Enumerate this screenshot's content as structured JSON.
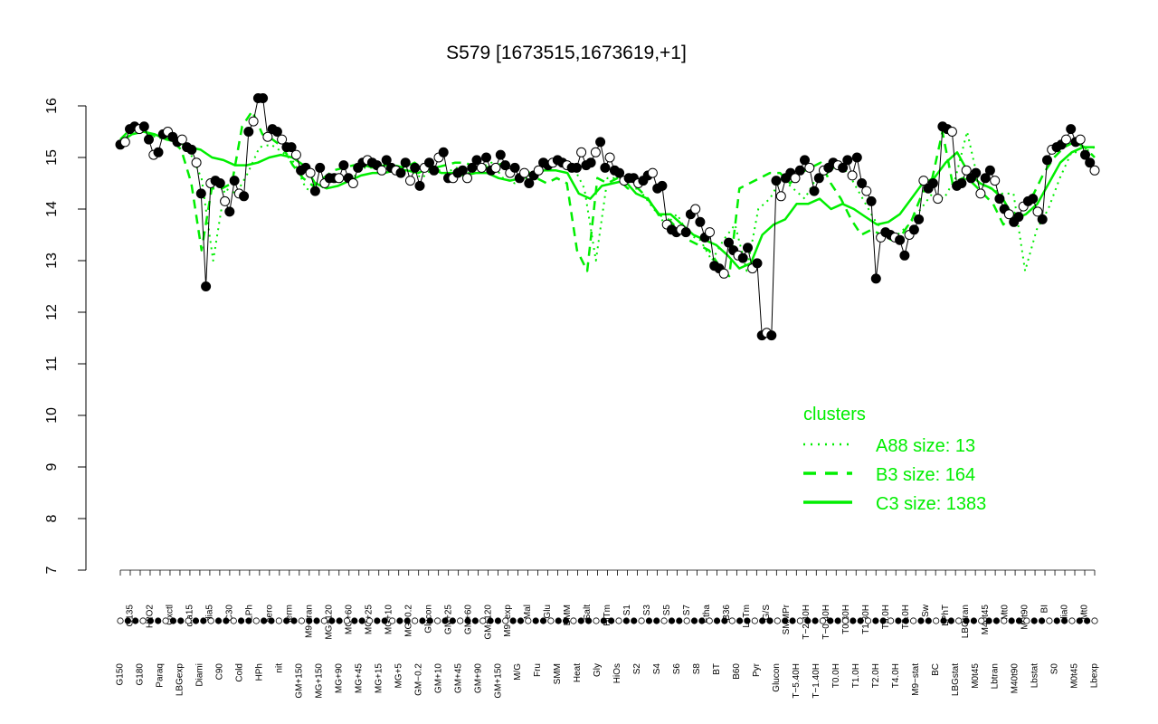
{
  "chart_data": {
    "type": "line",
    "title": "S579 [1673515,1673619,+1]",
    "xlabel": "",
    "ylabel": "",
    "ylim": [
      7,
      16
    ],
    "yticks": [
      7,
      8,
      9,
      10,
      11,
      12,
      13,
      14,
      15,
      16
    ],
    "grid": false,
    "x_tick_labels_top": [
      "G150",
      "G135",
      "G180",
      "H2O2",
      "Paraq",
      "Oxctl",
      "LBGexp",
      "dia15",
      "Diami",
      "dia5",
      "C90",
      "C30",
      "Cold",
      "LPh",
      "HPh",
      "aero",
      "nit",
      "ferm",
      "GM+150",
      "M9−tran",
      "MG+150",
      "MG+120",
      "MG+90",
      "MG+60",
      "MG+45",
      "MG+25",
      "MG+15",
      "MG+10",
      "MG+5",
      "MG−0.2",
      "GM−0.2",
      "Glucon",
      "GM+10",
      "GM+25",
      "GM+45",
      "GM+60",
      "GM+90",
      "GM+120",
      "GM+150",
      "M9−exp",
      "M/G",
      "Mal",
      "Fru",
      "Glu",
      "SMM",
      "BMM",
      "Heat",
      "Salt",
      "Gly",
      "HiTm",
      "HiOs",
      "S1",
      "S2",
      "S3",
      "S4",
      "S5",
      "S6",
      "S7",
      "S8",
      "Etha",
      "BT",
      "B36",
      "B60",
      "LoTm",
      "Pyr",
      "G/S",
      "Glucon",
      "SMMPr",
      "T−5.40H",
      "T−2.40H",
      "T−1.40H",
      "T−0.40H",
      "T0.0H",
      "T0.30H",
      "T1.0H",
      "T1.30H",
      "T2.0H",
      "T3.0H",
      "T4.0H",
      "T5.0H",
      "M9−stat",
      "Sw",
      "BC",
      "LPhT",
      "LBGstat",
      "LBGtran",
      "M0t45",
      "M40t45",
      "Lbtran",
      "Mt0",
      "M40t90",
      "M0t90",
      "Lbstat",
      "BI",
      "S0",
      "dia0",
      "M0t45",
      "Mt0",
      "Lbexp"
    ],
    "series": [
      {
        "name": "",
        "kind": "expression points",
        "values": [
          15.25,
          15.3,
          15.55,
          15.6,
          15.55,
          15.6,
          15.35,
          15.05,
          15.1,
          15.45,
          15.5,
          15.4,
          15.3,
          15.35,
          15.2,
          15.15,
          14.9,
          14.3,
          12.5,
          14.5,
          14.55,
          14.5,
          14.15,
          13.95,
          14.55,
          14.3,
          14.25,
          15.5,
          15.7,
          16.15,
          16.15,
          15.4,
          15.55,
          15.5,
          15.35,
          15.2,
          15.2,
          15.05,
          14.75,
          14.8,
          14.7,
          14.35,
          14.8,
          14.5,
          14.6,
          14.6,
          14.6,
          14.85,
          14.6,
          14.5,
          14.8,
          14.9,
          14.95,
          14.9,
          14.85,
          14.75,
          14.95,
          14.8,
          14.75,
          14.7,
          14.9,
          14.55,
          14.8,
          14.45,
          14.8,
          14.9,
          14.75,
          15.0,
          15.1,
          14.6,
          14.6,
          14.7,
          14.75,
          14.6,
          14.8,
          14.95,
          14.8,
          15.0,
          14.75,
          14.8,
          15.05,
          14.85,
          14.7,
          14.8,
          14.6,
          14.7,
          14.5,
          14.65,
          14.75,
          14.9,
          14.85,
          14.9,
          14.95,
          14.9,
          14.85,
          14.8,
          14.8,
          15.1,
          14.85,
          14.9,
          15.1,
          15.3,
          14.8,
          15.0,
          14.75,
          14.7,
          14.55,
          14.6,
          14.6,
          14.5,
          14.55,
          14.65,
          14.7,
          14.4,
          14.45,
          13.7,
          13.6,
          13.55,
          13.6,
          13.55,
          13.9,
          14.0,
          13.75,
          13.45,
          13.55,
          12.9,
          12.85,
          12.75,
          13.35,
          13.2,
          13.1,
          13.05,
          13.25,
          12.85,
          12.95,
          11.55,
          11.6,
          11.55,
          14.55,
          14.25,
          14.6,
          14.7,
          14.6,
          14.75,
          14.95,
          14.8,
          14.35,
          14.6,
          14.75,
          14.8,
          14.9,
          14.85,
          14.8,
          14.95,
          14.65,
          15.0,
          14.5,
          14.35,
          14.15,
          12.65,
          13.45,
          13.55,
          13.5,
          13.45,
          13.4,
          13.1,
          13.5,
          13.6,
          13.8,
          14.55,
          14.4,
          14.5,
          14.2,
          15.6,
          15.55,
          15.5,
          14.45,
          14.5,
          14.75,
          14.6,
          14.7,
          14.3,
          14.6,
          14.75,
          14.55,
          14.2,
          14.0,
          13.9,
          13.75,
          13.85,
          14.05,
          14.15,
          14.2,
          13.95,
          13.8,
          14.95,
          15.15,
          15.2,
          15.25,
          15.35,
          15.55,
          15.3,
          15.35,
          15.05,
          14.9,
          14.75
        ]
      },
      {
        "name": "A88 size: 13",
        "kind": "dotted",
        "values": [
          15.3,
          15.5,
          15.5,
          15.4,
          15.35,
          15.3,
          15.1,
          14.6,
          13.0,
          14.4,
          14.3,
          14.7,
          15.2,
          15.25,
          15.1,
          14.9,
          14.4,
          14.3,
          14.6,
          14.6,
          14.6,
          14.8,
          14.8,
          14.75,
          14.7,
          14.75,
          14.6,
          14.8,
          14.7,
          14.8,
          14.7,
          14.8,
          14.9,
          14.6,
          14.5,
          14.6,
          14.8,
          14.9,
          14.9,
          14.85,
          14.4,
          13.0,
          14.6,
          14.6,
          14.6,
          14.3,
          14.0,
          13.7,
          13.9,
          13.5,
          13.4,
          13.0,
          13.4,
          13.7,
          12.8,
          14.0,
          14.2,
          14.6,
          14.4,
          14.2,
          14.6,
          14.7,
          14.9,
          14.6,
          14.2,
          13.8,
          13.5,
          13.5,
          13.7,
          14.0,
          14.3,
          14.2,
          14.6,
          15.5,
          14.5,
          14.4,
          14.3,
          14.3,
          12.8,
          13.6,
          14.0,
          14.6,
          15.1,
          15.1,
          15.2
        ]
      },
      {
        "name": "B3 size: 164",
        "kind": "dashed",
        "values": [
          15.35,
          15.55,
          15.55,
          15.45,
          15.4,
          15.35,
          15.15,
          14.5,
          13.2,
          14.4,
          14.4,
          14.5,
          15.6,
          15.9,
          15.45,
          15.35,
          15.2,
          14.85,
          14.6,
          14.45,
          14.6,
          14.75,
          14.8,
          14.85,
          14.85,
          14.8,
          14.85,
          14.85,
          14.8,
          14.9,
          14.75,
          14.8,
          14.85,
          14.9,
          14.9,
          14.8,
          14.8,
          14.85,
          14.9,
          14.8,
          14.75,
          14.6,
          14.5,
          14.6,
          14.5,
          13.2,
          12.8,
          14.6,
          14.5,
          14.6,
          14.4,
          14.4,
          14.2,
          13.9,
          13.8,
          13.6,
          13.4,
          13.3,
          13.2,
          12.9,
          12.7,
          14.4,
          14.5,
          14.6,
          14.7,
          14.7,
          14.5,
          14.7,
          14.8,
          14.9,
          14.5,
          14.2,
          13.8,
          13.5,
          13.6,
          13.5,
          13.4,
          13.5,
          13.8,
          14.3,
          14.6,
          15.5,
          14.5,
          14.6,
          14.5,
          14.3,
          14.1,
          13.7,
          13.9,
          14.1,
          14.3,
          14.7,
          15.0,
          15.2,
          15.3,
          15.2,
          15.0
        ]
      },
      {
        "name": "C3 size: 1383",
        "kind": "solid",
        "values": [
          15.3,
          15.45,
          15.5,
          15.45,
          15.35,
          15.3,
          15.2,
          15.15,
          15.0,
          14.95,
          14.85,
          14.85,
          14.9,
          15.0,
          15.05,
          15.0,
          14.85,
          14.5,
          14.4,
          14.45,
          14.55,
          14.65,
          14.7,
          14.7,
          14.75,
          14.75,
          14.7,
          14.8,
          14.7,
          14.7,
          14.65,
          14.7,
          14.7,
          14.6,
          14.55,
          14.6,
          14.7,
          14.75,
          14.75,
          14.7,
          14.3,
          14.2,
          14.45,
          14.5,
          14.55,
          14.3,
          14.2,
          13.9,
          13.9,
          13.7,
          13.5,
          13.4,
          13.3,
          13.1,
          12.85,
          12.95,
          13.5,
          13.7,
          13.8,
          14.1,
          14.1,
          14.2,
          14.0,
          14.1,
          14.0,
          13.85,
          13.7,
          13.75,
          13.9,
          14.2,
          14.5,
          14.6,
          14.9,
          15.1,
          14.7,
          14.5,
          14.4,
          14.2,
          13.8,
          13.9,
          14.1,
          14.5,
          14.9,
          15.1,
          15.2,
          15.2
        ]
      }
    ],
    "legend": {
      "title": "clusters",
      "position": "bottom-right",
      "entries": [
        "A88 size: 13",
        "B3 size: 164",
        "C3 size: 1383"
      ]
    },
    "colors": {
      "clusters": "#00ee00",
      "points_open": "#ffffff",
      "points_filled": "#000000",
      "axis": "#000000"
    }
  }
}
